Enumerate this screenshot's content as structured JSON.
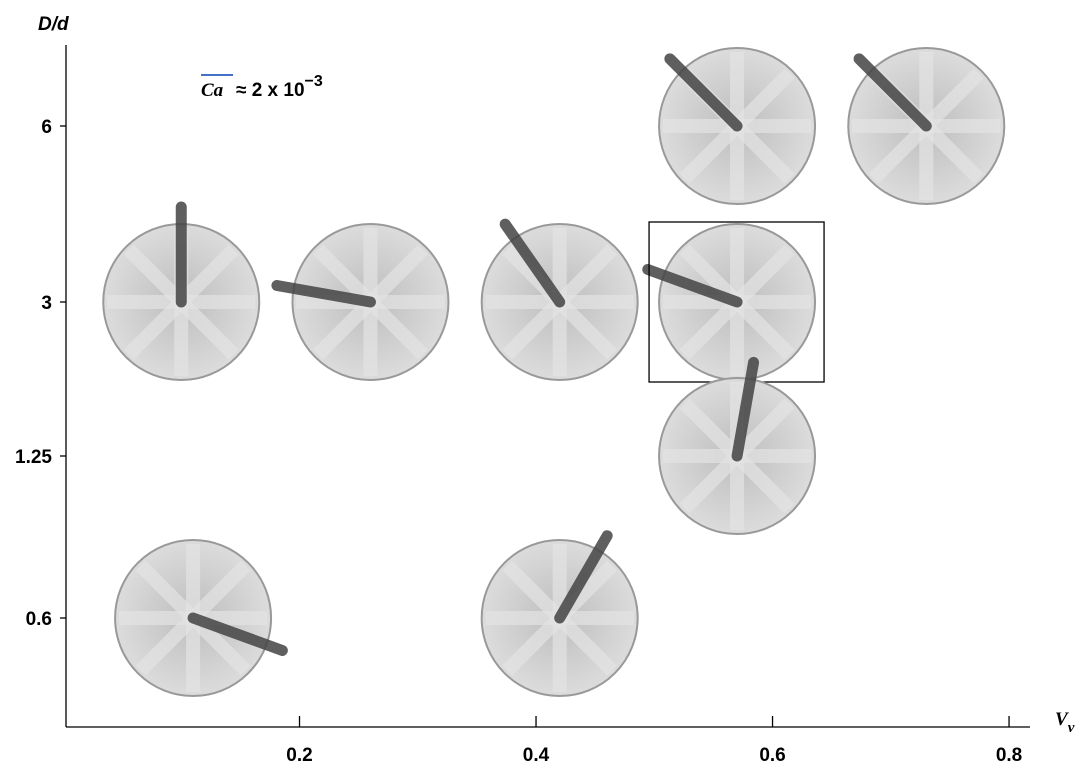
{
  "chart_data": {
    "type": "scatter",
    "y_label": "D/d",
    "x_label": "V",
    "x_label_sub": "v",
    "annotation": {
      "symbol": "Ca",
      "text": "≈ 2 x 10",
      "exponent": "−3"
    },
    "xlim": [
      0,
      0.86
    ],
    "xticks": [
      0.2,
      0.4,
      0.6,
      0.8
    ],
    "yticks": [
      6,
      3,
      1.25,
      0.6
    ],
    "x": [
      0.57,
      0.73,
      0.1,
      0.26,
      0.42,
      0.57,
      0.57,
      0.11,
      0.42
    ],
    "y": [
      6,
      6,
      3,
      3,
      3,
      3,
      1.25,
      0.6,
      0.6
    ],
    "boxed": [
      false,
      false,
      false,
      false,
      false,
      true,
      false,
      false,
      false
    ],
    "annotation_color": "#4472c4"
  }
}
